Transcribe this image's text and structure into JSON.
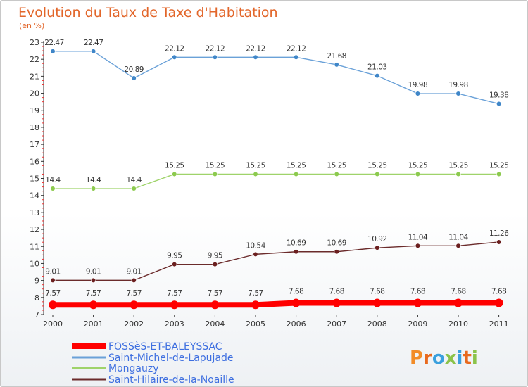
{
  "chart_data": {
    "type": "line",
    "title": "Evolution du Taux de Taxe d'Habitation",
    "subtitle": "(en %)",
    "xlabel": "",
    "ylabel": "",
    "x": [
      "2000",
      "2001",
      "2002",
      "2003",
      "2004",
      "2005",
      "2006",
      "2007",
      "2008",
      "2009",
      "2010",
      "2011"
    ],
    "ylim": [
      7,
      23
    ],
    "yticks": [
      "7",
      "8",
      "9",
      "10",
      "11",
      "12",
      "13",
      "14",
      "15",
      "16",
      "17",
      "18",
      "19",
      "20",
      "21",
      "22",
      "23"
    ],
    "grid": false,
    "legend_position": "bottom-left",
    "series": [
      {
        "name": "Saint-Michel-de-Lapujade",
        "color": "#6aa1d8",
        "marker_color": "#3f86c8",
        "values": [
          22.47,
          22.47,
          20.89,
          22.12,
          22.12,
          22.12,
          22.12,
          21.68,
          21.03,
          19.98,
          19.98,
          19.38
        ],
        "labels": [
          "22.47",
          "22.47",
          "20.89",
          "22.12",
          "22.12",
          "22.12",
          "22.12",
          "21.68",
          "21.03",
          "19.98",
          "19.98",
          "19.38"
        ]
      },
      {
        "name": "Mongauzy",
        "color": "#9fd36a",
        "marker_color": "#8cca4e",
        "values": [
          14.4,
          14.4,
          14.4,
          15.25,
          15.25,
          15.25,
          15.25,
          15.25,
          15.25,
          15.25,
          15.25,
          15.25
        ],
        "labels": [
          "14.4",
          "14.4",
          "14.4",
          "15.25",
          "15.25",
          "15.25",
          "15.25",
          "15.25",
          "15.25",
          "15.25",
          "15.25",
          "15.25"
        ]
      },
      {
        "name": "Saint-Hilaire-de-la-Noaille",
        "color": "#6b2b2b",
        "marker_color": "#6b1f1f",
        "values": [
          9.01,
          9.01,
          9.01,
          9.95,
          9.95,
          10.54,
          10.69,
          10.69,
          10.92,
          11.04,
          11.04,
          11.26
        ],
        "labels": [
          "9.01",
          "9.01",
          "9.01",
          "9.95",
          "9.95",
          "10.54",
          "10.69",
          "10.69",
          "10.92",
          "11.04",
          "11.04",
          "11.26"
        ]
      },
      {
        "name": "FOSSèS-ET-BALEYSSAC",
        "color": "#ff0000",
        "marker_color": "#ff0000",
        "emphasis": true,
        "values": [
          7.57,
          7.57,
          7.57,
          7.57,
          7.57,
          7.57,
          7.68,
          7.68,
          7.68,
          7.68,
          7.68,
          7.68
        ],
        "labels": [
          "7.57",
          "7.57",
          "7.57",
          "7.57",
          "7.57",
          "7.57",
          "7.68",
          "7.68",
          "7.68",
          "7.68",
          "7.68",
          "7.68"
        ]
      }
    ],
    "legend_order": [
      "FOSSèS-ET-BALEYSSAC",
      "Saint-Michel-de-Lapujade",
      "Mongauzy",
      "Saint-Hilaire-de-la-Noaille"
    ]
  },
  "logo": {
    "text": "Proxiti"
  },
  "colors": {
    "title": "#e2662a",
    "legend_text": "#3e6fe0",
    "axis": "#333333"
  }
}
